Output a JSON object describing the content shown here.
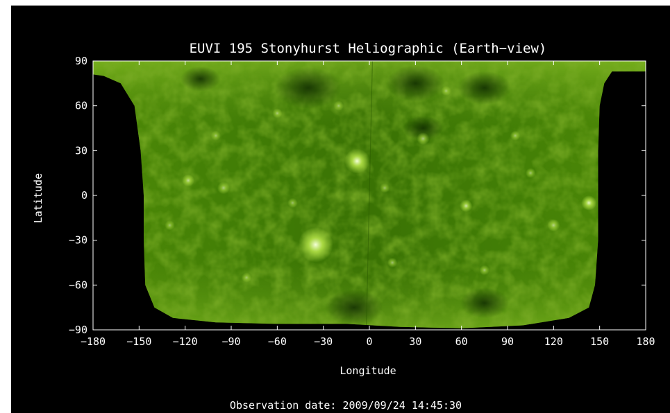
{
  "figure": {
    "title": "EUVI 195 Stonyhurst Heliographic (Earth−view)",
    "observation": "Observation date: 2009/09/24 14:45:30",
    "xlabel": "Longitude",
    "ylabel": "Latitude",
    "colors": {
      "background": "#000000",
      "axes": "#ffffff",
      "text": "#ffffff",
      "solar_low": "#1f4a00",
      "solar_mid": "#5a9a0a",
      "solar_high": "#b8e64a",
      "active_region": "#f4ffd8"
    }
  },
  "chart_data": {
    "type": "heatmap",
    "title": "EUVI 195 Stonyhurst Heliographic (Earth−view)",
    "xlabel": "Longitude",
    "ylabel": "Latitude",
    "xlim": [
      -180,
      180
    ],
    "ylim": [
      -90,
      90
    ],
    "xticks": [
      -180,
      -150,
      -120,
      -90,
      -60,
      -30,
      0,
      30,
      60,
      90,
      120,
      150,
      180
    ],
    "yticks": [
      -90,
      -60,
      -30,
      0,
      30,
      60,
      90
    ],
    "xtick_labels": [
      "−180",
      "−150",
      "−120",
      "−90",
      "−60",
      "−30",
      "0",
      "30",
      "60",
      "90",
      "120",
      "150",
      "180"
    ],
    "ytick_labels": [
      "−90",
      "−60",
      "−30",
      "0",
      "30",
      "60",
      "90"
    ],
    "grid": false,
    "colormap": "EUVI 195 green",
    "data_coverage": {
      "left_boundary": [
        {
          "lat": 90,
          "lon": -180
        },
        {
          "lat": 81,
          "lon": -180
        },
        {
          "lat": 80,
          "lon": -173
        },
        {
          "lat": 75,
          "lon": -162
        },
        {
          "lat": 60,
          "lon": -153
        },
        {
          "lat": 30,
          "lon": -149
        },
        {
          "lat": 0,
          "lon": -147
        },
        {
          "lat": -30,
          "lon": -147
        },
        {
          "lat": -60,
          "lon": -146
        },
        {
          "lat": -75,
          "lon": -140
        },
        {
          "lat": -82,
          "lon": -128
        },
        {
          "lat": -85,
          "lon": -100
        },
        {
          "lat": -86,
          "lon": -60
        },
        {
          "lat": -86,
          "lon": -15
        }
      ],
      "right_boundary": [
        {
          "lat": 90,
          "lon": 180
        },
        {
          "lat": 83,
          "lon": 180
        },
        {
          "lat": 83,
          "lon": 158
        },
        {
          "lat": 75,
          "lon": 153
        },
        {
          "lat": 60,
          "lon": 150
        },
        {
          "lat": 30,
          "lon": 149
        },
        {
          "lat": 0,
          "lon": 149
        },
        {
          "lat": -30,
          "lon": 149
        },
        {
          "lat": -60,
          "lon": 147
        },
        {
          "lat": -75,
          "lon": 143
        },
        {
          "lat": -82,
          "lon": 130
        },
        {
          "lat": -87,
          "lon": 100
        },
        {
          "lat": -89,
          "lon": 60
        },
        {
          "lat": -88,
          "lon": 20
        }
      ]
    },
    "bright_features": [
      {
        "lon": -8,
        "lat": 23,
        "intensity": 1.0,
        "size": 10
      },
      {
        "lon": -35,
        "lat": -33,
        "intensity": 1.0,
        "size": 14
      },
      {
        "lon": 143,
        "lat": -5,
        "intensity": 0.9,
        "size": 6
      },
      {
        "lon": 63,
        "lat": -7,
        "intensity": 0.8,
        "size": 5
      },
      {
        "lon": -118,
        "lat": 10,
        "intensity": 0.7,
        "size": 5
      },
      {
        "lon": -95,
        "lat": 5,
        "intensity": 0.6,
        "size": 5
      },
      {
        "lon": 35,
        "lat": 38,
        "intensity": 0.6,
        "size": 5
      },
      {
        "lon": 95,
        "lat": 40,
        "intensity": 0.55,
        "size": 4
      },
      {
        "lon": -60,
        "lat": 55,
        "intensity": 0.55,
        "size": 4
      },
      {
        "lon": 120,
        "lat": -20,
        "intensity": 0.6,
        "size": 5
      },
      {
        "lon": 75,
        "lat": -50,
        "intensity": 0.55,
        "size": 4
      },
      {
        "lon": -80,
        "lat": -55,
        "intensity": 0.5,
        "size": 4
      },
      {
        "lon": 15,
        "lat": -45,
        "intensity": 0.55,
        "size": 4
      },
      {
        "lon": -130,
        "lat": -20,
        "intensity": 0.5,
        "size": 4
      },
      {
        "lon": 105,
        "lat": 15,
        "intensity": 0.55,
        "size": 4
      },
      {
        "lon": -20,
        "lat": 60,
        "intensity": 0.5,
        "size": 4
      },
      {
        "lon": 50,
        "lat": 70,
        "intensity": 0.5,
        "size": 4
      },
      {
        "lon": -100,
        "lat": 40,
        "intensity": 0.5,
        "size": 4
      },
      {
        "lon": 10,
        "lat": 5,
        "intensity": 0.5,
        "size": 4
      },
      {
        "lon": -50,
        "lat": -5,
        "intensity": 0.5,
        "size": 4
      }
    ],
    "dark_features": [
      {
        "lon": -40,
        "lat": 72,
        "size": 30
      },
      {
        "lon": 30,
        "lat": 75,
        "size": 26
      },
      {
        "lon": 75,
        "lat": 72,
        "size": 24
      },
      {
        "lon": 35,
        "lat": 45,
        "size": 18
      },
      {
        "lon": -10,
        "lat": -75,
        "size": 26
      },
      {
        "lon": 75,
        "lat": -72,
        "size": 22
      },
      {
        "lon": -110,
        "lat": 78,
        "size": 18
      }
    ]
  }
}
